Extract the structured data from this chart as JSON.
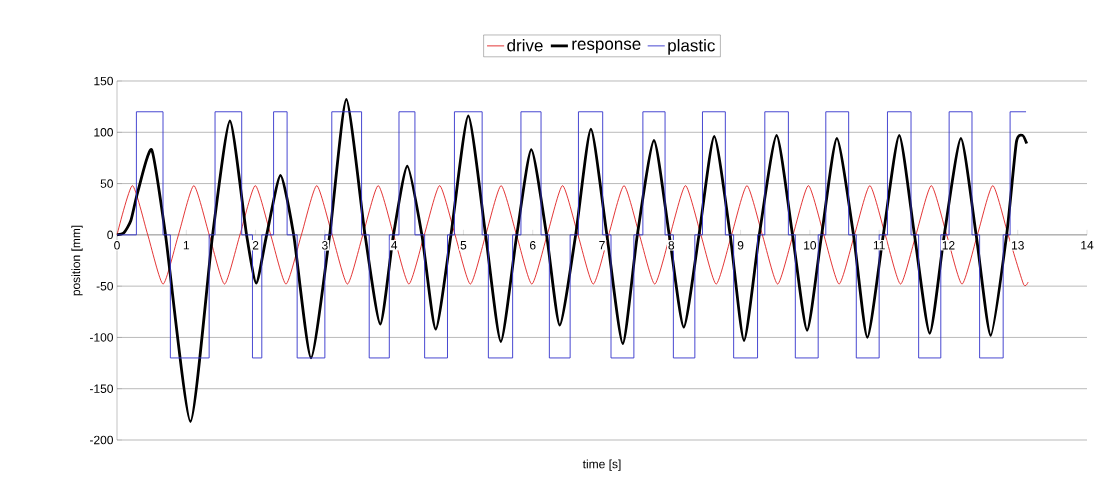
{
  "chart_data": {
    "type": "line",
    "xlabel": "time [s]",
    "ylabel": "position [mm]",
    "xlim": [
      0,
      14
    ],
    "xticks": [
      0,
      1,
      2,
      3,
      4,
      5,
      6,
      7,
      8,
      9,
      10,
      11,
      12,
      13,
      14
    ],
    "ylim": [
      -200,
      150
    ],
    "yticks": [
      -200,
      -150,
      -100,
      -50,
      0,
      50,
      100,
      150
    ],
    "grid": "y",
    "legend": "top",
    "series": [
      {
        "name": "drive",
        "type": "line",
        "color": "#e02020",
        "x": [
          0,
          0.222,
          0.444,
          0.665,
          0.887,
          1.109,
          1.331,
          1.552,
          1.774,
          1.996,
          2.218,
          2.439,
          2.661,
          2.883,
          3.105,
          3.326,
          3.548,
          3.77,
          3.992,
          4.213,
          4.435,
          4.657,
          4.879,
          5.1,
          5.322,
          5.544,
          5.766,
          5.987,
          6.209,
          6.431,
          6.653,
          6.874,
          7.096,
          7.318,
          7.54,
          7.761,
          7.983,
          8.205,
          8.427,
          8.648,
          8.87,
          9.092,
          9.314,
          9.535,
          9.757,
          9.979,
          10.201,
          10.422,
          10.644,
          10.866,
          11.088,
          11.309,
          11.531,
          11.753,
          11.975,
          12.196,
          12.418,
          12.64,
          12.862,
          13.083,
          13.15
        ],
        "values": [
          0,
          48,
          0,
          -48,
          0,
          48,
          0,
          -48,
          0,
          48,
          0,
          -48,
          0,
          48,
          0,
          -48,
          0,
          48,
          0,
          -48,
          0,
          48,
          0,
          -48,
          0,
          48,
          0,
          -48,
          0,
          48,
          0,
          -48,
          0,
          48,
          0,
          -48,
          0,
          48,
          0,
          -48,
          0,
          48,
          0,
          -48,
          0,
          48,
          0,
          -48,
          0,
          48,
          0,
          -48,
          0,
          48,
          0,
          -48,
          0,
          48,
          0,
          -48,
          -46
        ]
      },
      {
        "name": "response",
        "type": "line",
        "color": "#000000",
        "x": [
          0,
          0.1,
          0.2,
          0.3,
          0.5,
          0.7,
          1.06,
          1.38,
          1.63,
          1.87,
          2.01,
          2.16,
          2.36,
          2.55,
          2.8,
          3.07,
          3.31,
          3.58,
          3.8,
          3.99,
          4.19,
          4.4,
          4.6,
          4.82,
          5.07,
          5.32,
          5.54,
          5.77,
          5.98,
          6.2,
          6.39,
          6.62,
          6.84,
          7.07,
          7.3,
          7.51,
          7.75,
          7.97,
          8.18,
          8.4,
          8.62,
          8.85,
          9.05,
          9.27,
          9.52,
          9.75,
          9.96,
          10.17,
          10.39,
          10.63,
          10.83,
          11.06,
          11.29,
          11.51,
          11.73,
          11.94,
          12.18,
          12.4,
          12.61,
          12.84,
          12.98,
          13.07,
          13.13
        ],
        "values": [
          0,
          2,
          14,
          42,
          83,
          0,
          -182,
          0,
          111,
          0,
          -47,
          0,
          58,
          0,
          -120,
          0,
          132,
          0,
          -87,
          0,
          67,
          0,
          -92,
          0,
          116,
          0,
          -104,
          0,
          83,
          0,
          -88,
          0,
          103,
          0,
          -106,
          0,
          92,
          0,
          -90,
          0,
          96,
          0,
          -103,
          0,
          97,
          0,
          -93,
          0,
          94,
          0,
          -100,
          0,
          97,
          0,
          -96,
          0,
          94,
          0,
          -98,
          0,
          90,
          97,
          89
        ]
      },
      {
        "name": "plastic",
        "type": "step",
        "color": "#3333cc",
        "x": [
          0,
          0.28,
          0.664,
          0.77,
          1.33,
          1.415,
          1.8,
          1.955,
          2.09,
          2.26,
          2.455,
          2.6,
          3.0,
          3.1,
          3.53,
          3.64,
          3.93,
          4.07,
          4.3,
          4.44,
          4.77,
          4.87,
          5.27,
          5.36,
          5.71,
          5.83,
          6.12,
          6.24,
          6.54,
          6.66,
          7.01,
          7.13,
          7.46,
          7.59,
          7.91,
          8.03,
          8.34,
          8.45,
          8.78,
          8.9,
          9.245,
          9.35,
          9.69,
          9.79,
          10.12,
          10.23,
          10.56,
          10.67,
          11.0,
          11.12,
          11.46,
          11.57,
          11.89,
          12.01,
          12.34,
          12.45,
          12.79,
          12.89,
          13.12
        ],
        "values": [
          0,
          120,
          0,
          -120,
          0,
          120,
          0,
          -120,
          0,
          120,
          0,
          -120,
          0,
          120,
          0,
          -120,
          0,
          120,
          0,
          -120,
          0,
          120,
          0,
          -120,
          0,
          120,
          0,
          -120,
          0,
          120,
          0,
          -120,
          0,
          120,
          0,
          -120,
          0,
          120,
          0,
          -120,
          0,
          120,
          0,
          -120,
          0,
          120,
          0,
          -120,
          0,
          120,
          0,
          -120,
          0,
          120,
          0,
          -120,
          0,
          120,
          120
        ]
      }
    ]
  }
}
